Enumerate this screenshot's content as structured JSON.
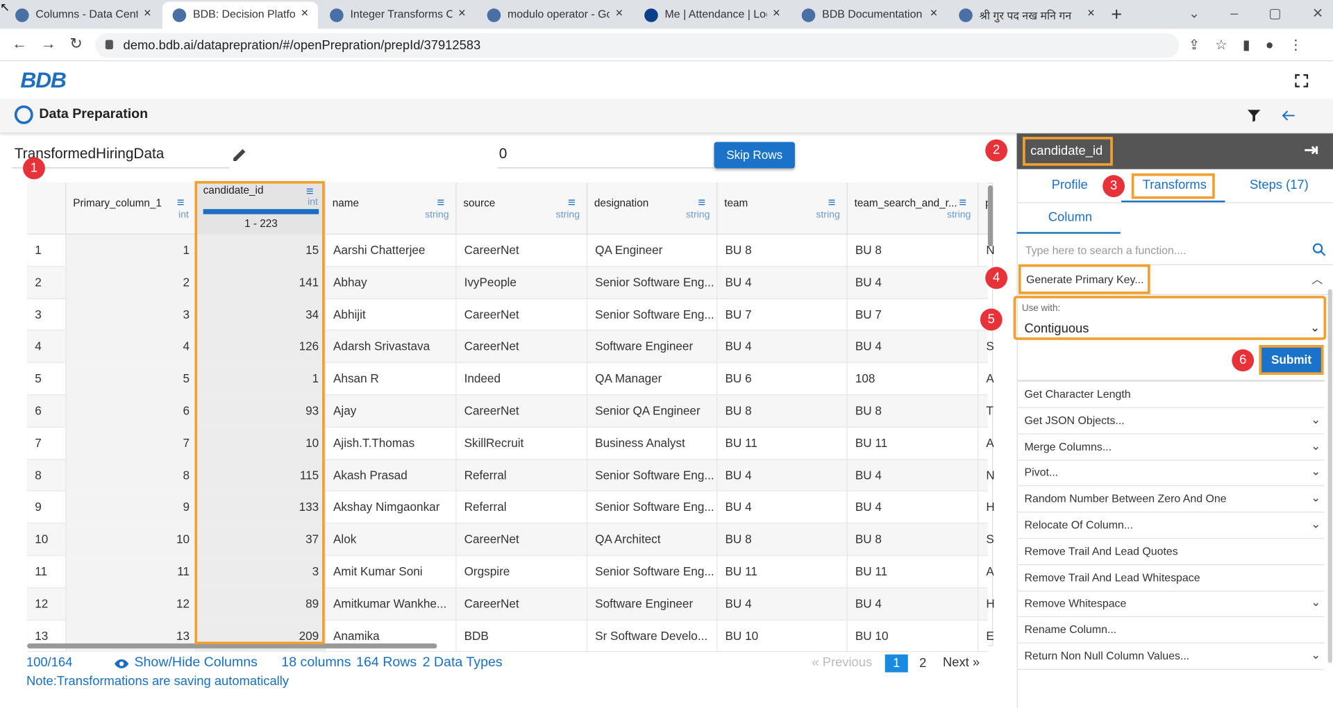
{
  "browser": {
    "tabs": [
      "Columns - Data Cente",
      "BDB: Decision Platfor",
      "Integer Transforms O",
      "modulo operator - Go",
      "Me | Attendance | Log",
      "BDB Documentation",
      "श्री गुर पद नख मनि गन"
    ],
    "active_tab": 1,
    "url": "demo.bdb.ai/dataprepration/#/openPrepration/prepId/37912583"
  },
  "app": {
    "logo": "BDB",
    "page_title": "Data Preparation"
  },
  "toolbar": {
    "dataset_name": "TransformedHiringData",
    "skip_input": "0",
    "skip_button": "Skip Rows"
  },
  "table": {
    "columns": [
      {
        "name": "Primary_column_1",
        "type": "int"
      },
      {
        "name": "candidate_id",
        "type": "int"
      },
      {
        "name": "name",
        "type": "string"
      },
      {
        "name": "source",
        "type": "string"
      },
      {
        "name": "designation",
        "type": "string"
      },
      {
        "name": "team",
        "type": "string"
      },
      {
        "name": "team_search_and_r...",
        "type": "string"
      },
      {
        "name": "p",
        "type": null
      }
    ],
    "selected_range": "1 - 223",
    "rows": [
      [
        1,
        1,
        15,
        "Aarshi Chatterjee",
        "CareerNet",
        "QA Engineer",
        "BU 8",
        "BU 8",
        "N"
      ],
      [
        2,
        2,
        141,
        "Abhay",
        "IvyPeople",
        "Senior Software Eng...",
        "BU 4",
        "BU 4",
        null
      ],
      [
        3,
        3,
        34,
        "Abhijit",
        "CareerNet",
        "Senior Software Eng...",
        "BU 7",
        "BU 7",
        null
      ],
      [
        4,
        4,
        126,
        "Adarsh Srivastava",
        "CareerNet",
        "Software Engineer",
        "BU 4",
        "BU 4",
        "S"
      ],
      [
        5,
        5,
        1,
        "Ahsan R",
        "Indeed",
        "QA Manager",
        "BU 6",
        "108",
        "A"
      ],
      [
        6,
        6,
        93,
        "Ajay",
        "CareerNet",
        "Senior QA Engineer",
        "BU 8",
        "BU 8",
        "T"
      ],
      [
        7,
        7,
        10,
        "Ajish.T.Thomas",
        "SkillRecruit",
        "Business Analyst",
        "BU 11",
        "BU 11",
        "A"
      ],
      [
        8,
        8,
        115,
        "Akash Prasad",
        "Referral",
        "Senior Software Eng...",
        "BU 4",
        "BU 4",
        "N"
      ],
      [
        9,
        9,
        133,
        "Akshay Nimgaonkar",
        "Referral",
        "Senior Software Eng...",
        "BU 4",
        "BU 4",
        "H"
      ],
      [
        10,
        10,
        37,
        "Alok",
        "CareerNet",
        "QA Architect",
        "BU 8",
        "BU 8",
        "S"
      ],
      [
        11,
        11,
        3,
        "Amit Kumar Soni",
        "Orgspire",
        "Senior Software Eng...",
        "BU 11",
        "BU 11",
        "A"
      ],
      [
        12,
        12,
        89,
        "Amitkumar Wankhe...",
        "CareerNet",
        "Software Engineer",
        "BU 4",
        "BU 4",
        "H"
      ],
      [
        13,
        13,
        209,
        "Anamika",
        "BDB",
        "Sr Software Develo...",
        "BU 10",
        "BU 10",
        "E"
      ]
    ]
  },
  "footer": {
    "count": "100/164",
    "show_hide": "Show/Hide Columns",
    "columns": "18 columns",
    "rows": "164 Rows",
    "types": "2 Data Types",
    "previous": "« Previous",
    "pages": [
      "1",
      "2"
    ],
    "next": "Next »",
    "note": "Note:Transformations are saving automatically"
  },
  "panel": {
    "column_name": "candidate_id",
    "tabs": [
      "Profile",
      "Transforms",
      "Steps (17)"
    ],
    "sub_tab": "Column",
    "search_placeholder": "Type here to search a function....",
    "open_function": {
      "name": "Generate Primary Key...",
      "field_label": "Use with:",
      "field_value": "Contiguous",
      "submit": "Submit"
    },
    "functions": [
      {
        "name": "Get Character Length",
        "expandable": false
      },
      {
        "name": "Get JSON Objects...",
        "expandable": true
      },
      {
        "name": "Merge Columns...",
        "expandable": true
      },
      {
        "name": "Pivot...",
        "expandable": true
      },
      {
        "name": "Random Number Between Zero And One",
        "expandable": true
      },
      {
        "name": "Relocate Of Column...",
        "expandable": true
      },
      {
        "name": "Remove Trail And Lead Quotes",
        "expandable": false
      },
      {
        "name": "Remove Trail And Lead Whitespace",
        "expandable": false
      },
      {
        "name": "Remove Whitespace",
        "expandable": true
      },
      {
        "name": "Rename Column...",
        "expandable": false
      },
      {
        "name": "Return Non Null Column Values...",
        "expandable": true
      }
    ]
  },
  "callouts": [
    "1",
    "2",
    "3",
    "4",
    "5",
    "6"
  ]
}
